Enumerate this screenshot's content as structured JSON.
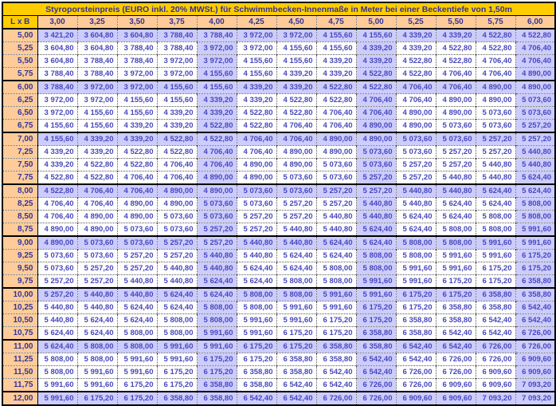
{
  "title": "Styroporsteinpreis (EURO inkl. 20% MWSt.) für Schwimmbecken-Innenmaße in Meter bei einer Beckentiefe von 1,50m",
  "corner_label": "L x B",
  "columns": [
    "3,00",
    "3,25",
    "3,50",
    "3,75",
    "4,00",
    "4,25",
    "4,50",
    "4,75",
    "5,00",
    "5,25",
    "5,50",
    "5,75",
    "6,00"
  ],
  "rows": [
    {
      "label": "5,00",
      "values": [
        "3 421,20",
        "3 604,80",
        "3 604,80",
        "3 788,40",
        "3 788,40",
        "3 972,00",
        "3 972,00",
        "4 155,60",
        "4 155,60",
        "4 339,20",
        "4 339,20",
        "4 522,80",
        "4 522,80"
      ]
    },
    {
      "label": "5,25",
      "values": [
        "3 604,80",
        "3 604,80",
        "3 788,40",
        "3 788,40",
        "3 972,00",
        "3 972,00",
        "4 155,60",
        "4 155,60",
        "4 339,20",
        "4 339,20",
        "4 522,80",
        "4 522,80",
        "4 706,40"
      ]
    },
    {
      "label": "5,50",
      "values": [
        "3 604,80",
        "3 788,40",
        "3 788,40",
        "3 972,00",
        "3 972,00",
        "4 155,60",
        "4 155,60",
        "4 339,20",
        "4 339,20",
        "4 522,80",
        "4 522,80",
        "4 706,40",
        "4 706,40"
      ]
    },
    {
      "label": "5,75",
      "values": [
        "3 788,40",
        "3 788,40",
        "3 972,00",
        "3 972,00",
        "4 155,60",
        "4 155,60",
        "4 339,20",
        "4 339,20",
        "4 522,80",
        "4 522,80",
        "4 706,40",
        "4 706,40",
        "4 890,00"
      ]
    },
    {
      "label": "6,00",
      "values": [
        "3 788,40",
        "3 972,00",
        "3 972,00",
        "4 155,60",
        "4 155,60",
        "4 339,20",
        "4 339,20",
        "4 522,80",
        "4 522,80",
        "4 706,40",
        "4 706,40",
        "4 890,00",
        "4 890,00"
      ]
    },
    {
      "label": "6,25",
      "values": [
        "3 972,00",
        "3 972,00",
        "4 155,60",
        "4 155,60",
        "4 339,20",
        "4 339,20",
        "4 522,80",
        "4 522,80",
        "4 706,40",
        "4 706,40",
        "4 890,00",
        "4 890,00",
        "5 073,60"
      ]
    },
    {
      "label": "6,50",
      "values": [
        "3 972,00",
        "4 155,60",
        "4 155,60",
        "4 339,20",
        "4 339,20",
        "4 522,80",
        "4 522,80",
        "4 706,40",
        "4 706,40",
        "4 890,00",
        "4 890,00",
        "5 073,60",
        "5 073,60"
      ]
    },
    {
      "label": "6,75",
      "values": [
        "4 155,60",
        "4 155,60",
        "4 339,20",
        "4 339,20",
        "4 522,80",
        "4 522,80",
        "4 706,40",
        "4 706,40",
        "4 890,00",
        "4 890,00",
        "5 073,60",
        "5 073,60",
        "5 257,20"
      ]
    },
    {
      "label": "7,00",
      "values": [
        "4 155,60",
        "4 339,20",
        "4 339,20",
        "4 522,80",
        "4 522,80",
        "4 706,40",
        "4 706,40",
        "4 890,00",
        "4 890,00",
        "5 073,60",
        "5 073,60",
        "5 257,20",
        "5 257,20"
      ]
    },
    {
      "label": "7,25",
      "values": [
        "4 339,20",
        "4 339,20",
        "4 522,80",
        "4 522,80",
        "4 706,40",
        "4 706,40",
        "4 890,00",
        "4 890,00",
        "5 073,60",
        "5 073,60",
        "5 257,20",
        "5 257,20",
        "5 440,80"
      ]
    },
    {
      "label": "7,50",
      "values": [
        "4 339,20",
        "4 522,80",
        "4 522,80",
        "4 706,40",
        "4 706,40",
        "4 890,00",
        "4 890,00",
        "5 073,60",
        "5 073,60",
        "5 257,20",
        "5 257,20",
        "5 440,80",
        "5 440,80"
      ]
    },
    {
      "label": "7,75",
      "values": [
        "4 522,80",
        "4 522,80",
        "4 706,40",
        "4 706,40",
        "4 890,00",
        "4 890,00",
        "5 073,60",
        "5 073,60",
        "5 257,20",
        "5 257,20",
        "5 440,80",
        "5 440,80",
        "5 624,40"
      ]
    },
    {
      "label": "8,00",
      "values": [
        "4 522,80",
        "4 706,40",
        "4 706,40",
        "4 890,00",
        "4 890,00",
        "5 073,60",
        "5 073,60",
        "5 257,20",
        "5 257,20",
        "5 440,80",
        "5 440,80",
        "5 624,40",
        "5 624,40"
      ]
    },
    {
      "label": "8,25",
      "values": [
        "4 706,40",
        "4 706,40",
        "4 890,00",
        "4 890,00",
        "5 073,60",
        "5 073,60",
        "5 257,20",
        "5 257,20",
        "5 440,80",
        "5 440,80",
        "5 624,40",
        "5 624,40",
        "5 808,00"
      ]
    },
    {
      "label": "8,50",
      "values": [
        "4 706,40",
        "4 890,00",
        "4 890,00",
        "5 073,60",
        "5 073,60",
        "5 257,20",
        "5 257,20",
        "5 440,80",
        "5 440,80",
        "5 624,40",
        "5 624,40",
        "5 808,00",
        "5 808,00"
      ]
    },
    {
      "label": "8,75",
      "values": [
        "4 890,00",
        "4 890,00",
        "5 073,60",
        "5 073,60",
        "5 257,20",
        "5 257,20",
        "5 440,80",
        "5 440,80",
        "5 624,40",
        "5 624,40",
        "5 808,00",
        "5 808,00",
        "5 991,60"
      ]
    },
    {
      "label": "9,00",
      "values": [
        "4 890,00",
        "5 073,60",
        "5 073,60",
        "5 257,20",
        "5 257,20",
        "5 440,80",
        "5 440,80",
        "5 624,40",
        "5 624,40",
        "5 808,00",
        "5 808,00",
        "5 991,60",
        "5 991,60"
      ]
    },
    {
      "label": "9,25",
      "values": [
        "5 073,60",
        "5 073,60",
        "5 257,20",
        "5 257,20",
        "5 440,80",
        "5 440,80",
        "5 624,40",
        "5 624,40",
        "5 808,00",
        "5 808,00",
        "5 991,60",
        "5 991,60",
        "6 175,20"
      ]
    },
    {
      "label": "9,50",
      "values": [
        "5 073,60",
        "5 257,20",
        "5 257,20",
        "5 440,80",
        "5 440,80",
        "5 624,40",
        "5 624,40",
        "5 808,00",
        "5 808,00",
        "5 991,60",
        "5 991,60",
        "6 175,20",
        "6 175,20"
      ]
    },
    {
      "label": "9,75",
      "values": [
        "5 257,20",
        "5 257,20",
        "5 440,80",
        "5 440,80",
        "5 624,40",
        "5 624,40",
        "5 808,00",
        "5 808,00",
        "5 991,60",
        "5 991,60",
        "6 175,20",
        "6 175,20",
        "6 358,80"
      ]
    },
    {
      "label": "10,00",
      "values": [
        "5 257,20",
        "5 440,80",
        "5 440,80",
        "5 624,40",
        "5 624,40",
        "5 808,00",
        "5 808,00",
        "5 991,60",
        "5 991,60",
        "6 175,20",
        "6 175,20",
        "6 358,80",
        "6 358,80"
      ]
    },
    {
      "label": "10,25",
      "values": [
        "5 440,80",
        "5 440,80",
        "5 624,40",
        "5 624,40",
        "5 808,00",
        "5 808,00",
        "5 991,60",
        "5 991,60",
        "6 175,20",
        "6 175,20",
        "6 358,80",
        "6 358,80",
        "6 542,40"
      ]
    },
    {
      "label": "10,50",
      "values": [
        "5 440,80",
        "5 624,40",
        "5 624,40",
        "5 808,00",
        "5 808,00",
        "5 991,60",
        "5 991,60",
        "6 175,20",
        "6 175,20",
        "6 358,80",
        "6 358,80",
        "6 542,40",
        "6 542,40"
      ]
    },
    {
      "label": "10,75",
      "values": [
        "5 624,40",
        "5 624,40",
        "5 808,00",
        "5 808,00",
        "5 991,60",
        "5 991,60",
        "6 175,20",
        "6 175,20",
        "6 358,80",
        "6 358,80",
        "6 542,40",
        "6 542,40",
        "6 726,00"
      ]
    },
    {
      "label": "11,00",
      "values": [
        "5 624,40",
        "5 808,00",
        "5 808,00",
        "5 991,60",
        "5 991,60",
        "6 175,20",
        "6 175,20",
        "6 358,80",
        "6 358,80",
        "6 542,40",
        "6 542,40",
        "6 726,00",
        "6 726,00"
      ]
    },
    {
      "label": "11,25",
      "values": [
        "5 808,00",
        "5 808,00",
        "5 991,60",
        "5 991,60",
        "6 175,20",
        "6 175,20",
        "6 358,80",
        "6 358,80",
        "6 542,40",
        "6 542,40",
        "6 726,00",
        "6 726,00",
        "6 909,60"
      ]
    },
    {
      "label": "11,50",
      "values": [
        "5 808,00",
        "5 991,60",
        "5 991,60",
        "6 175,20",
        "6 175,20",
        "6 358,80",
        "6 358,80",
        "6 542,40",
        "6 542,40",
        "6 726,00",
        "6 726,00",
        "6 909,60",
        "6 909,60"
      ]
    },
    {
      "label": "11,75",
      "values": [
        "5 991,60",
        "5 991,60",
        "6 175,20",
        "6 175,20",
        "6 358,80",
        "6 358,80",
        "6 542,40",
        "6 542,40",
        "6 726,00",
        "6 726,00",
        "6 909,60",
        "6 909,60",
        "7 093,20"
      ]
    },
    {
      "label": "12,00",
      "values": [
        "5 991,60",
        "6 175,20",
        "6 175,20",
        "6 358,80",
        "6 358,80",
        "6 542,40",
        "6 542,40",
        "6 726,00",
        "6 726,00",
        "6 909,60",
        "6 909,60",
        "7 093,20",
        "7 093,20"
      ]
    }
  ],
  "highlight": {
    "highlighted_row_labels": [
      "5,00",
      "6,00",
      "7,00",
      "8,00",
      "9,00",
      "10,00",
      "11,00",
      "12,00"
    ],
    "highlighted_column_labels": [
      "4,00",
      "5,00",
      "6,00"
    ]
  },
  "colors": {
    "title_background": "#ffcc00",
    "header_background": "#ffcc99",
    "highlight_cell_background": "#ccccff",
    "default_cell_background": "#ffffff",
    "header_text": "#333399",
    "value_text": "#4848bb",
    "grid_solid": "#000000",
    "grid_dotted": "#555555"
  }
}
